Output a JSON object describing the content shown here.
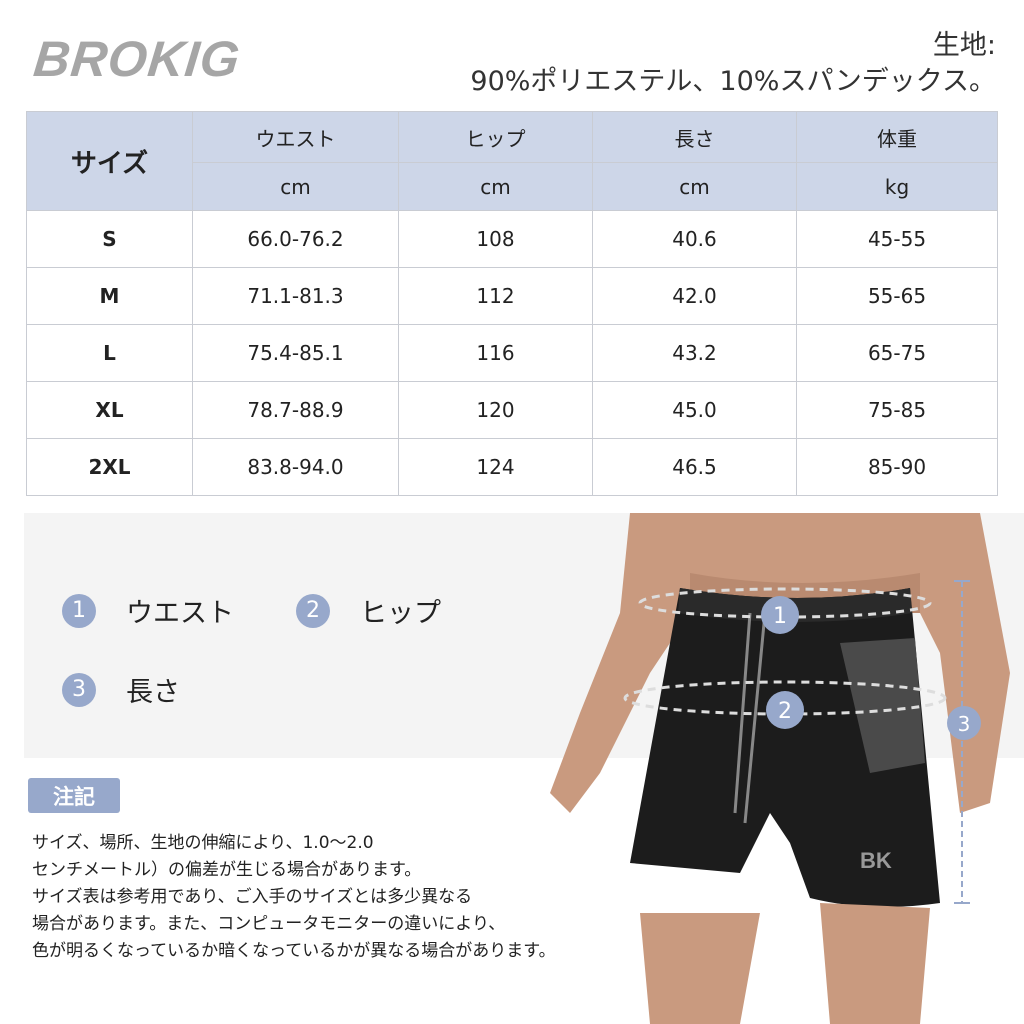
{
  "brand": {
    "logo": "BROKIG"
  },
  "fabric": {
    "label": "生地:",
    "value": "90%ポリエステル、10%スパンデックス。"
  },
  "size_table": {
    "size_header": "サイズ",
    "columns": [
      {
        "name": "ウエスト",
        "unit": "cm"
      },
      {
        "name": "ヒップ",
        "unit": "cm"
      },
      {
        "name": "長さ",
        "unit": "cm"
      },
      {
        "name": "体重",
        "unit": "kg"
      }
    ],
    "rows": [
      {
        "size": "S",
        "values": [
          "66.0-76.2",
          "108",
          "40.6",
          "45-55"
        ]
      },
      {
        "size": "M",
        "values": [
          "71.1-81.3",
          "112",
          "42.0",
          "55-65"
        ]
      },
      {
        "size": "L",
        "values": [
          "75.4-85.1",
          "116",
          "43.2",
          "65-75"
        ]
      },
      {
        "size": "XL",
        "values": [
          "78.7-88.9",
          "120",
          "45.0",
          "75-85"
        ]
      },
      {
        "size": "2XL",
        "values": [
          "83.8-94.0",
          "124",
          "46.5",
          "85-90"
        ]
      }
    ]
  },
  "measure_legend": [
    {
      "num": "1",
      "label": "ウエスト"
    },
    {
      "num": "2",
      "label": "ヒップ"
    },
    {
      "num": "3",
      "label": "長さ"
    }
  ],
  "note": {
    "badge": "注記",
    "lines": [
      "サイズ、場所、生地の伸縮により、1.0〜2.0",
      "センチメートル）の偏差が生じる場合があります。",
      "サイズ表は参考用であり、ご入手のサイズとは多少異なる",
      "場合があります。また、コンピュータモニターの違いにより、",
      "色が明るくなっているか暗くなっているかが異なる場合があります。"
    ]
  },
  "colors": {
    "header_bg": "#cdd6e8",
    "badge": "#97a8cb",
    "logo": "#a6a6a6",
    "shorts": "#1c1c1c"
  }
}
